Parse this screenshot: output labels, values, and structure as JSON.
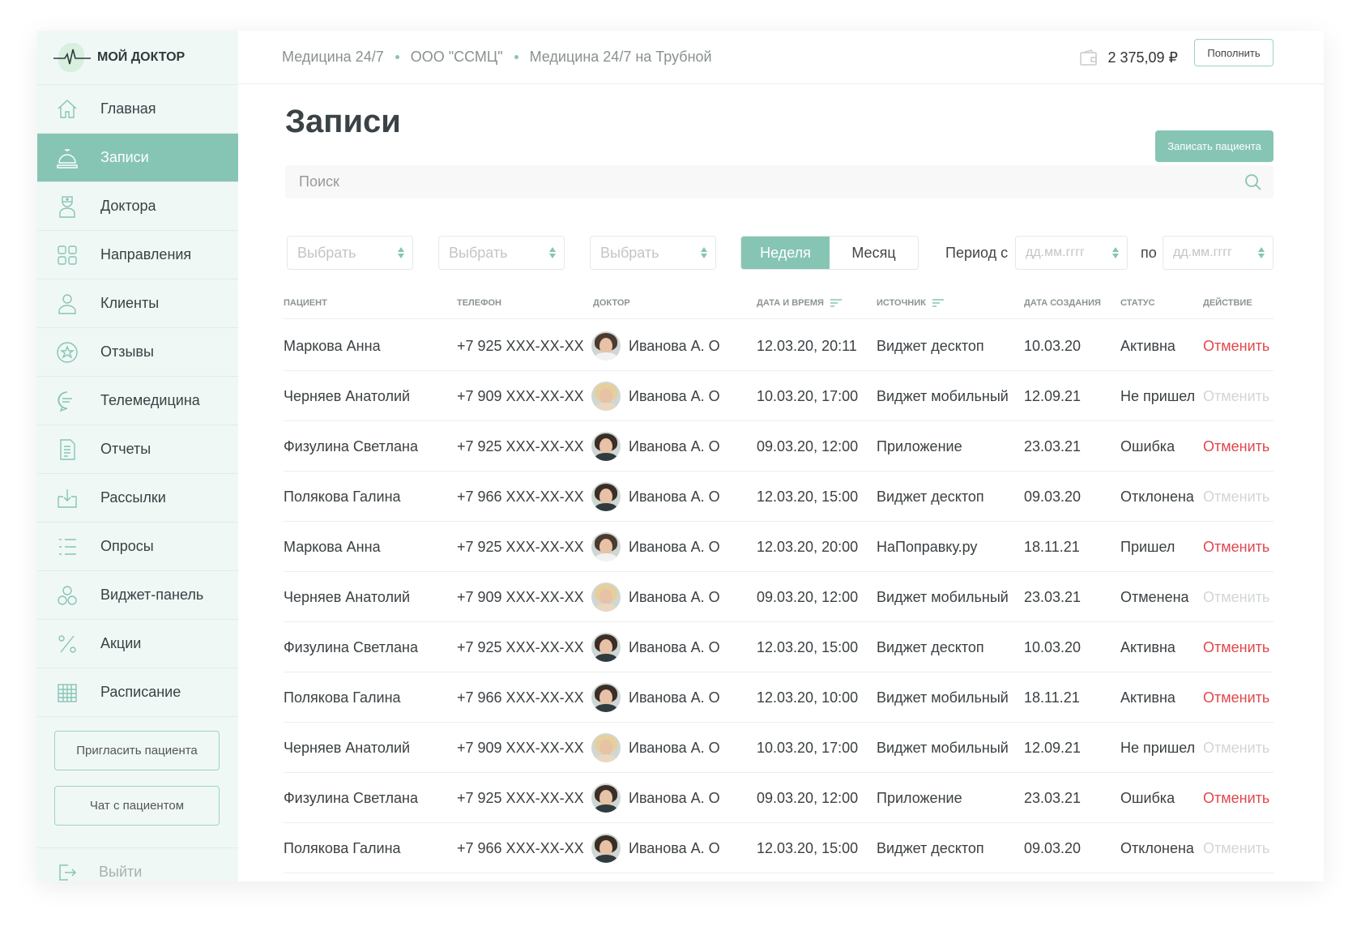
{
  "brand": {
    "name": "МОЙ ДОКТОР"
  },
  "colors": {
    "accent": "#86c5b4",
    "danger": "#e0474c",
    "sidebar_bg": "#f0f8f6"
  },
  "sidebar": {
    "items": [
      {
        "label": "Главная",
        "icon": "home-icon"
      },
      {
        "label": "Записи",
        "icon": "reception-bell-icon",
        "active": true
      },
      {
        "label": "Доктора",
        "icon": "doctor-icon"
      },
      {
        "label": "Направления",
        "icon": "grid-icon"
      },
      {
        "label": "Клиенты",
        "icon": "user-icon"
      },
      {
        "label": "Отзывы",
        "icon": "star-icon"
      },
      {
        "label": "Телемедицина",
        "icon": "chat-icon"
      },
      {
        "label": "Отчеты",
        "icon": "document-icon"
      },
      {
        "label": "Рассылки",
        "icon": "mail-send-icon"
      },
      {
        "label": "Опросы",
        "icon": "list-icon"
      },
      {
        "label": "Виджет-панель",
        "icon": "widget-icon"
      },
      {
        "label": "Акции",
        "icon": "percent-icon"
      },
      {
        "label": "Расписание",
        "icon": "calendar-icon"
      }
    ],
    "invite_button": "Пригласить пациента",
    "chat_button": "Чат с пациентом",
    "logout": "Выйти"
  },
  "topbar": {
    "breadcrumbs": [
      "Медицина 24/7",
      "ООО \"ССМЦ\"",
      "Медицина 24/7 на Трубной"
    ],
    "balance": "2 375,09 ₽",
    "topup_button": "Пополнить"
  },
  "page": {
    "title": "Записи",
    "add_button": "Записать пациента",
    "search_placeholder": "Поиск"
  },
  "filters": {
    "selects": [
      "Выбрать",
      "Выбрать",
      "Выбрать"
    ],
    "period_tabs": [
      {
        "label": "Неделя",
        "active": true
      },
      {
        "label": "Месяц",
        "active": false
      }
    ],
    "period_from_label": "Период с",
    "period_to_label": "по",
    "date_placeholder": "дд.мм.гггг"
  },
  "table": {
    "columns": [
      "ПАЦИЕНТ",
      "ТЕЛЕФОН",
      "ДОКТОР",
      "ДАТА И ВРЕМЯ",
      "ИСТОЧНИК",
      "ДАТА СОЗДАНИЯ",
      "СТАТУС",
      "ДЕЙСТВИЕ"
    ],
    "rows": [
      {
        "patient": "Маркова Анна",
        "phone": "+7 925 XXX-XX-XX",
        "doctor": "Иванова А. О",
        "avatar": "dark",
        "datetime": "12.03.20, 20:11",
        "source": "Виджет десктоп",
        "created": "10.03.20",
        "status": "Активна",
        "action": "Отменить",
        "action_enabled": true
      },
      {
        "patient": "Черняев Анатолий",
        "phone": "+7 909 XXX-XX-XX",
        "doctor": "Иванова А. О",
        "avatar": "blonde",
        "datetime": "10.03.20, 17:00",
        "source": "Виджет мобильный",
        "created": "12.09.21",
        "status": "Не пришел",
        "action": "Отменить",
        "action_enabled": false
      },
      {
        "patient": "Физулина Светлана",
        "phone": "+7 925 XXX-XX-XX",
        "doctor": "Иванова А. О",
        "avatar": "male",
        "datetime": "09.03.20, 12:00",
        "source": "Приложение",
        "created": "23.03.21",
        "status": "Ошибка",
        "action": "Отменить",
        "action_enabled": true
      },
      {
        "patient": "Полякова Галина",
        "phone": "+7 966 XXX-XX-XX",
        "doctor": "Иванова А. О",
        "avatar": "male",
        "datetime": "12.03.20, 15:00",
        "source": "Виджет десктоп",
        "created": "09.03.20",
        "status": "Отклонена",
        "action": "Отменить",
        "action_enabled": false
      },
      {
        "patient": "Маркова Анна",
        "phone": "+7 925 XXX-XX-XX",
        "doctor": "Иванова А. О",
        "avatar": "dark",
        "datetime": "12.03.20, 20:00",
        "source": "НаПоправку.ру",
        "created": "18.11.21",
        "status": "Пришел",
        "action": "Отменить",
        "action_enabled": true
      },
      {
        "patient": "Черняев Анатолий",
        "phone": "+7 909 XXX-XX-XX",
        "doctor": "Иванова А. О",
        "avatar": "blonde",
        "datetime": "09.03.20, 12:00",
        "source": "Виджет мобильный",
        "created": "23.03.21",
        "status": "Отменена",
        "action": "Отменить",
        "action_enabled": false
      },
      {
        "patient": "Физулина Светлана",
        "phone": "+7 925 XXX-XX-XX",
        "doctor": "Иванова А. О",
        "avatar": "male",
        "datetime": "12.03.20, 15:00",
        "source": "Виджет десктоп",
        "created": "10.03.20",
        "status": "Активна",
        "action": "Отменить",
        "action_enabled": true
      },
      {
        "patient": "Полякова Галина",
        "phone": "+7 966 XXX-XX-XX",
        "doctor": "Иванова А. О",
        "avatar": "male",
        "datetime": "12.03.20, 10:00",
        "source": "Виджет мобильный",
        "created": "18.11.21",
        "status": "Активна",
        "action": "Отменить",
        "action_enabled": true
      },
      {
        "patient": "Черняев Анатолий",
        "phone": "+7 909 XXX-XX-XX",
        "doctor": "Иванова А. О",
        "avatar": "blonde",
        "datetime": "10.03.20, 17:00",
        "source": "Виджет мобильный",
        "created": "12.09.21",
        "status": "Не пришел",
        "action": "Отменить",
        "action_enabled": false
      },
      {
        "patient": "Физулина Светлана",
        "phone": "+7 925 XXX-XX-XX",
        "doctor": "Иванова А. О",
        "avatar": "male",
        "datetime": "09.03.20, 12:00",
        "source": "Приложение",
        "created": "23.03.21",
        "status": "Ошибка",
        "action": "Отменить",
        "action_enabled": true
      },
      {
        "patient": "Полякова Галина",
        "phone": "+7 966 XXX-XX-XX",
        "doctor": "Иванова А. О",
        "avatar": "male",
        "datetime": "12.03.20, 15:00",
        "source": "Виджет десктоп",
        "created": "09.03.20",
        "status": "Отклонена",
        "action": "Отменить",
        "action_enabled": false
      }
    ]
  }
}
